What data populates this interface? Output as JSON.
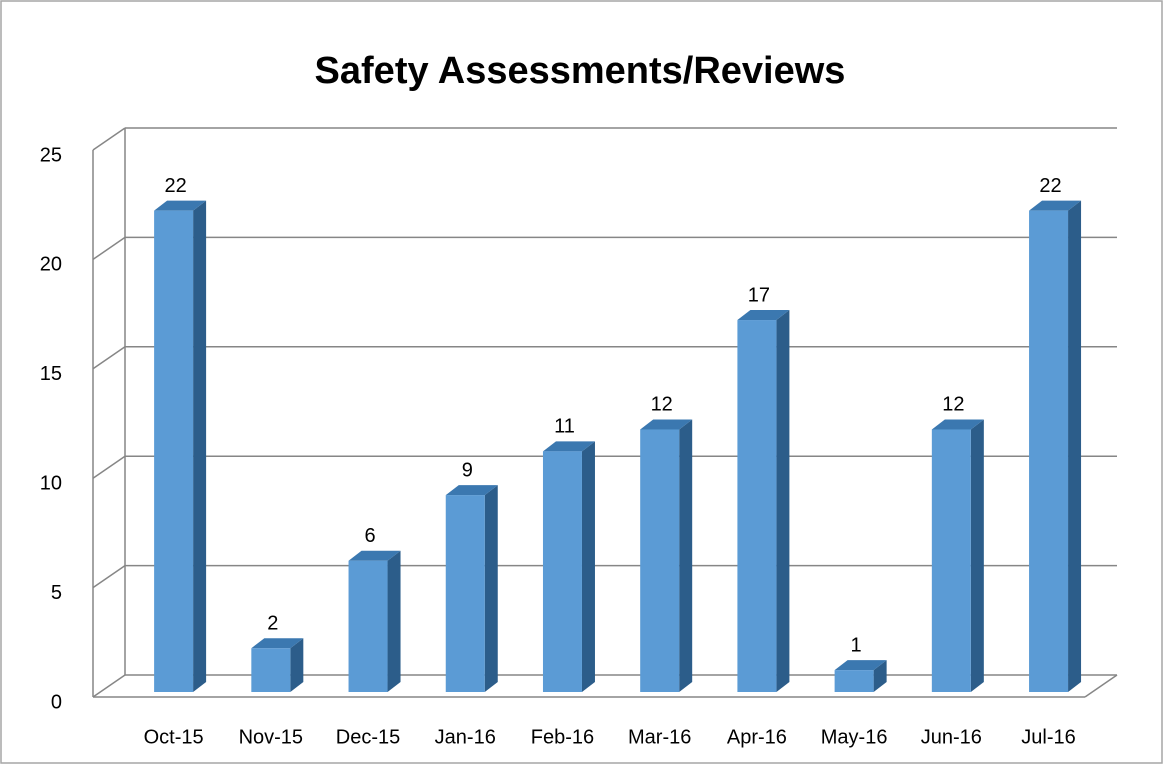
{
  "chart_data": {
    "type": "bar3d",
    "title": "Safety Assessments/Reviews",
    "categories": [
      "Oct-15",
      "Nov-15",
      "Dec-15",
      "Jan-16",
      "Feb-16",
      "Mar-16",
      "Apr-16",
      "May-16",
      "Jun-16",
      "Jul-16"
    ],
    "values": [
      22,
      2,
      6,
      9,
      11,
      12,
      17,
      1,
      12,
      22
    ],
    "color": "#5b9bd5",
    "ylim": [
      0,
      25
    ],
    "yticks": [
      0,
      5,
      10,
      15,
      20,
      25
    ],
    "grid": true
  }
}
